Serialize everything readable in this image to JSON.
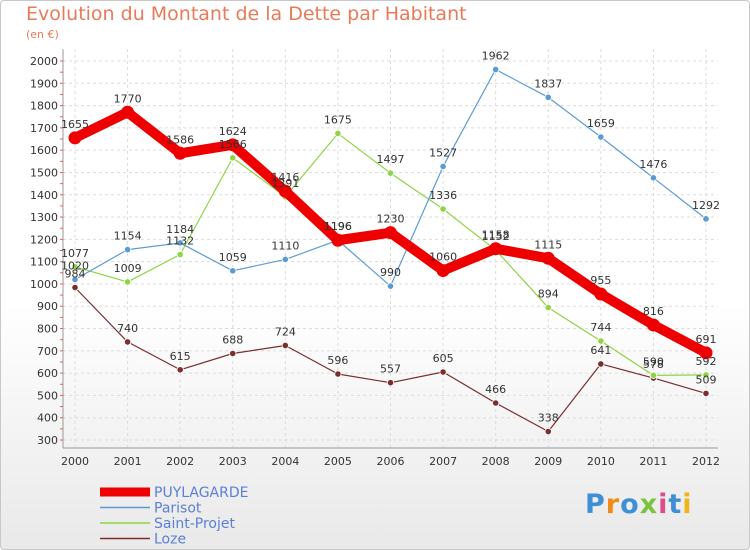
{
  "chart_data": {
    "type": "line",
    "title": "Evolution du Montant de la Dette par Habitant",
    "subtitle": "(en €)",
    "xlabel": "",
    "ylabel": "",
    "ylim": [
      300,
      2000
    ],
    "yticks": [
      300,
      400,
      500,
      600,
      700,
      800,
      900,
      1000,
      1100,
      1200,
      1300,
      1400,
      1500,
      1600,
      1700,
      1800,
      1900,
      2000
    ],
    "x": [
      "2000",
      "2001",
      "2002",
      "2003",
      "2004",
      "2005",
      "2006",
      "2007",
      "2008",
      "2009",
      "2010",
      "2011",
      "2012"
    ],
    "grid": true,
    "legend_position": "bottom-left",
    "series": [
      {
        "name": "PUYLAGARDE",
        "color": "#ee0000",
        "values": [
          1655,
          1770,
          1586,
          1624,
          1416,
          1196,
          1230,
          1060,
          1158,
          1115,
          955,
          816,
          691
        ]
      },
      {
        "name": "Parisot",
        "color": "#5b9bd5",
        "values": [
          1020,
          1154,
          1184,
          1059,
          1110,
          1196,
          990,
          1527,
          1962,
          1837,
          1659,
          1476,
          1292
        ]
      },
      {
        "name": "Saint-Projet",
        "color": "#8ed445",
        "values": [
          1077,
          1009,
          1132,
          1566,
          1391,
          1675,
          1497,
          1336,
          1152,
          894,
          744,
          590,
          592
        ]
      },
      {
        "name": "Loze",
        "color": "#7a2e2e",
        "values": [
          984,
          740,
          615,
          688,
          724,
          596,
          557,
          605,
          466,
          338,
          641,
          578,
          509
        ]
      }
    ]
  },
  "logo": {
    "letters": [
      "P",
      "r",
      "o",
      "x",
      "i",
      "t",
      "i"
    ],
    "colors": [
      "#3d8fd6",
      "#f08a18",
      "#3d8fd6",
      "#7cc241",
      "#e04c8a",
      "#3d8fd6",
      "#f0b418"
    ]
  }
}
